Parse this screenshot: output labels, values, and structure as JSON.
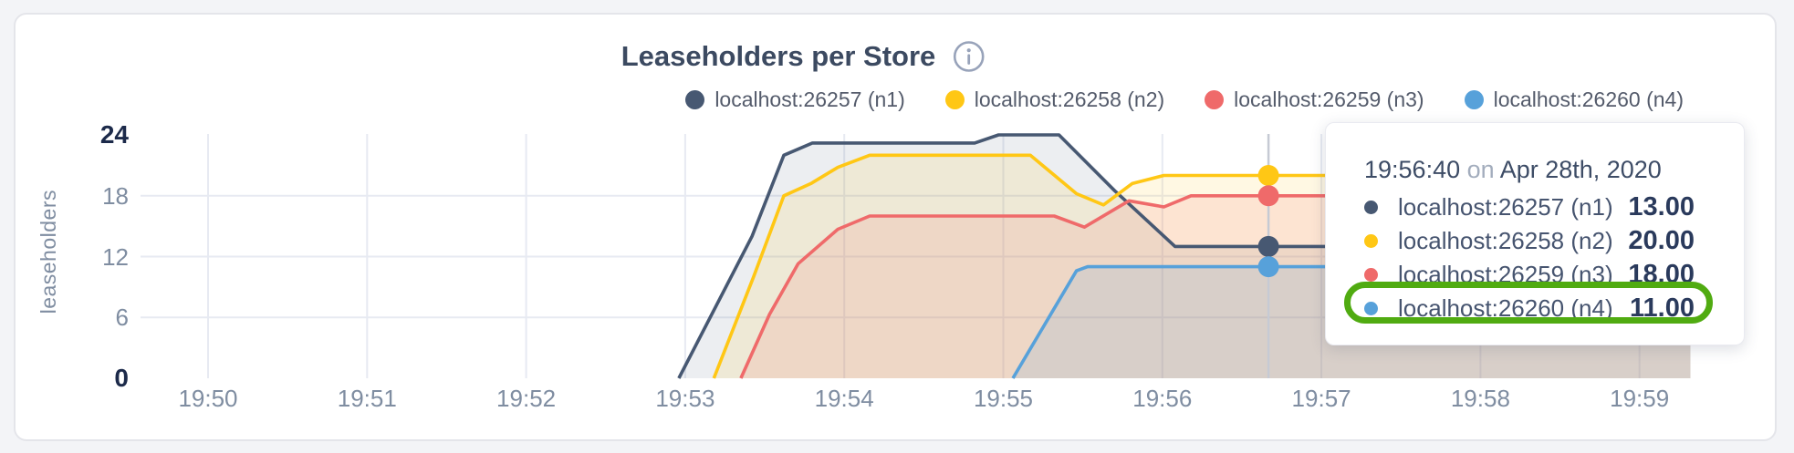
{
  "chart": {
    "title": "Leaseholders per Store",
    "ylabel": "leaseholders"
  },
  "chart_data": {
    "type": "area",
    "title": "Leaseholders per Store",
    "xlabel": "",
    "ylabel": "leaseholders",
    "x_axis": {
      "tick_labels": [
        "19:50",
        "19:51",
        "19:52",
        "19:53",
        "19:54",
        "19:55",
        "19:56",
        "19:57",
        "19:58",
        "19:59"
      ],
      "unit": "minutes_after_19:50"
    },
    "y_axis": {
      "ticks": [
        0,
        6,
        12,
        18,
        24
      ],
      "tick_labels": [
        "0",
        "6",
        "12",
        "18",
        "24"
      ],
      "emphasized_ticks": [
        0,
        24
      ],
      "ylim": [
        0,
        24
      ]
    },
    "grid": {
      "horizontal_at": [
        6,
        12,
        18
      ],
      "vertical_at_ticks": true
    },
    "legend_position": "top-right",
    "series": [
      {
        "name": "localhost:26257 (n1)",
        "color": "#475872",
        "points": [
          [
            2.96,
            0
          ],
          [
            3.42,
            14
          ],
          [
            3.62,
            22
          ],
          [
            3.8,
            23.2
          ],
          [
            4.82,
            23.2
          ],
          [
            4.97,
            24
          ],
          [
            5.35,
            24
          ],
          [
            5.7,
            18.5
          ],
          [
            5.79,
            17.2
          ],
          [
            6.08,
            13
          ],
          [
            9.32,
            13
          ]
        ]
      },
      {
        "name": "localhost:26258 (n2)",
        "color": "#ffc715",
        "points": [
          [
            3.18,
            0
          ],
          [
            3.43,
            10
          ],
          [
            3.62,
            18
          ],
          [
            3.79,
            19.2
          ],
          [
            3.96,
            20.8
          ],
          [
            4.16,
            22
          ],
          [
            5.17,
            22
          ],
          [
            5.46,
            18.2
          ],
          [
            5.63,
            17.1
          ],
          [
            5.81,
            19.2
          ],
          [
            6.01,
            20
          ],
          [
            9.32,
            20
          ]
        ]
      },
      {
        "name": "localhost:26259 (n3)",
        "color": "#ef6a6a",
        "points": [
          [
            3.35,
            0
          ],
          [
            3.53,
            6.3
          ],
          [
            3.71,
            11.3
          ],
          [
            3.96,
            14.7
          ],
          [
            4.16,
            16
          ],
          [
            5.32,
            16
          ],
          [
            5.51,
            14.9
          ],
          [
            5.79,
            17.5
          ],
          [
            6.01,
            16.9
          ],
          [
            6.18,
            18
          ],
          [
            9.32,
            18
          ]
        ]
      },
      {
        "name": "localhost:26260 (n4)",
        "color": "#57a1da",
        "points": [
          [
            5.06,
            0
          ],
          [
            5.46,
            10.6
          ],
          [
            5.53,
            11
          ],
          [
            9.32,
            11
          ]
        ]
      }
    ],
    "hover": {
      "time_label": "19:56:40",
      "time_minutes": 6.667,
      "values": [
        13,
        20,
        18,
        11
      ]
    }
  },
  "tooltip": {
    "time": "19:56:40",
    "on_word": "on",
    "date": "Apr 28th, 2020",
    "rows": [
      {
        "label": "localhost:26257 (n1)",
        "value": "13.00",
        "color": "#475872",
        "highlighted": false
      },
      {
        "label": "localhost:26258 (n2)",
        "value": "20.00",
        "color": "#ffc715",
        "highlighted": false
      },
      {
        "label": "localhost:26259 (n3)",
        "value": "18.00",
        "color": "#ef6a6a",
        "highlighted": false
      },
      {
        "label": "localhost:26260 (n4)",
        "value": "11.00",
        "color": "#57a1da",
        "highlighted": true
      }
    ],
    "highlight_color": "#50ab11"
  },
  "colors": {
    "grid": "#e7eaf2",
    "hover_line": "#c6cad4",
    "tick_text": "#7f8da1",
    "tick_text_emphasis": "#1c2a4a",
    "title_text": "#3c4a61",
    "info_icon": "#98a3ba"
  }
}
